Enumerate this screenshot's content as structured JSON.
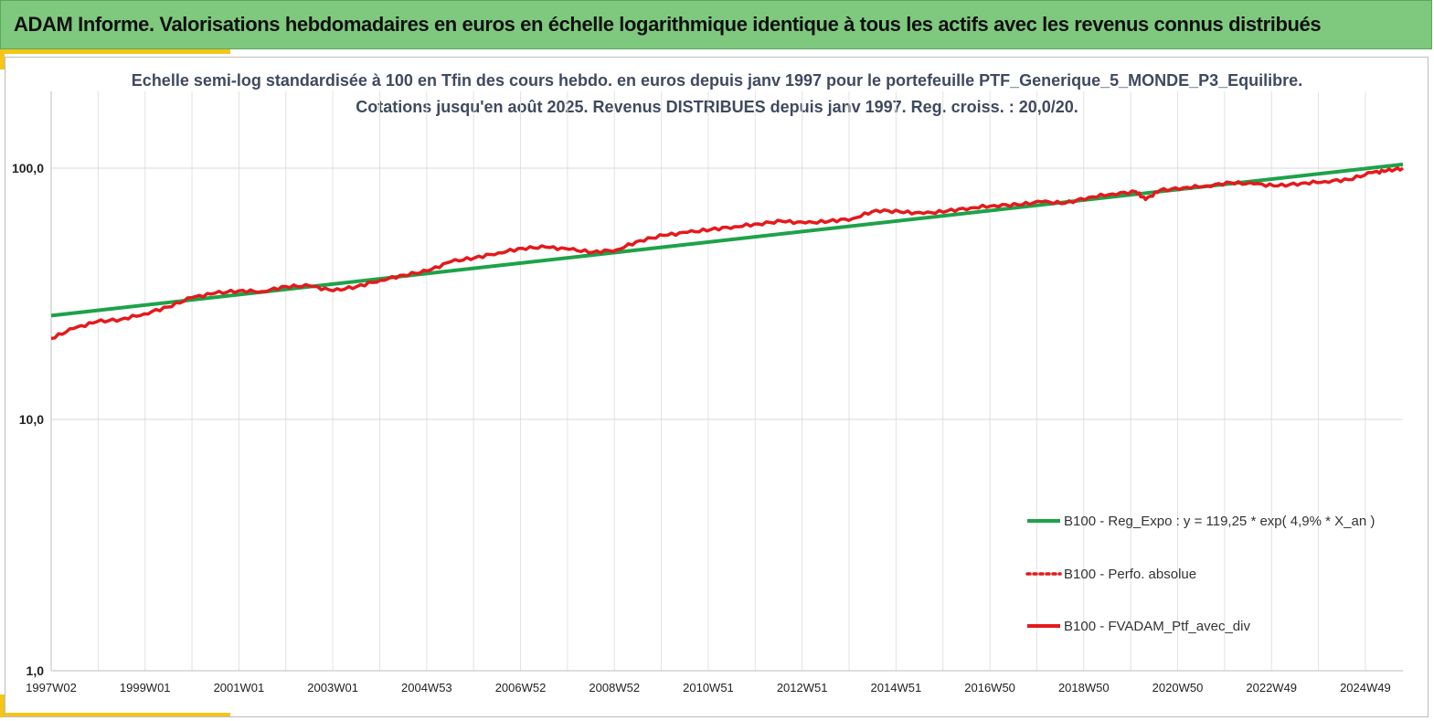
{
  "banner": {
    "title": "ADAM Informe. Valorisations hebdomadaires en euros en échelle logarithmique identique à tous les actifs avec les revenus connus distribués"
  },
  "colors": {
    "banner_bg": "#7fc97f",
    "accent": "#f5c518",
    "regression": "#1ea24a",
    "perf": "#e41a1c"
  },
  "chart_data": {
    "type": "line",
    "title": "Echelle semi-log standardisée à 100 en Tfin des cours hebdo.  en euros depuis janv 1997 pour le portefeuille PTF_Generique_5_MONDE_P3_Equilibre.",
    "subtitle": "Cotations  jusqu'en août 2025. Revenus DISTRIBUES depuis janv 1997. Reg. croiss. : 20,0/20.",
    "y_scale": "log",
    "ylim": [
      1,
      200
    ],
    "y_ticks": [
      "1,0",
      "10,0",
      "100,0"
    ],
    "x_range": [
      1997.03,
      2025.65
    ],
    "x_ticks": [
      "1997W02",
      "1999W01",
      "2001W01",
      "2003W01",
      "2004W53",
      "2006W52",
      "2008W52",
      "2010W51",
      "2012W51",
      "2014W51",
      "2016W50",
      "2018W50",
      "2020W50",
      "2022W49",
      "2024W49"
    ],
    "grid": true,
    "legend_position": "right",
    "series": [
      {
        "name": "B100 - Reg_Expo : y = 119,25 * exp( 4,9% *  X_an )",
        "style": "solid",
        "color": "#1ea24a",
        "x": [
          1997.03,
          2025.65
        ],
        "y": [
          25.9,
          103.5
        ]
      },
      {
        "name": "B100 - Perfo. absolue",
        "style": "dotted",
        "color": "#e41a1c",
        "x": [],
        "y": []
      },
      {
        "name": "B100 - FVADAM_Ptf_avec_div",
        "style": "solid",
        "color": "#e41a1c",
        "x": [
          1997.03,
          1997.5,
          1998.0,
          1998.5,
          1999.0,
          1999.5,
          2000.0,
          2000.5,
          2001.0,
          2001.5,
          2002.0,
          2002.5,
          2003.0,
          2003.5,
          2004.0,
          2004.5,
          2005.0,
          2005.5,
          2006.0,
          2006.5,
          2007.0,
          2007.5,
          2008.0,
          2008.5,
          2009.0,
          2009.5,
          2010.0,
          2010.5,
          2011.0,
          2011.5,
          2012.0,
          2012.5,
          2013.0,
          2013.5,
          2014.0,
          2014.5,
          2015.0,
          2015.5,
          2016.0,
          2016.5,
          2017.0,
          2017.5,
          2018.0,
          2018.5,
          2019.0,
          2019.5,
          2020.0,
          2020.2,
          2020.5,
          2021.0,
          2021.5,
          2022.0,
          2022.5,
          2023.0,
          2023.5,
          2024.0,
          2024.5,
          2025.0,
          2025.3,
          2025.65
        ],
        "y": [
          21.0,
          23.0,
          24.5,
          25.0,
          26.3,
          28.0,
          30.5,
          31.8,
          32.5,
          32.3,
          33.8,
          34.0,
          32.5,
          33.8,
          35.8,
          37.5,
          39.0,
          42.5,
          44.0,
          46.0,
          48.0,
          48.5,
          47.5,
          46.3,
          47.3,
          51.5,
          54.0,
          55.5,
          57.0,
          58.5,
          60.0,
          61.5,
          60.5,
          61.5,
          63.0,
          68.0,
          67.0,
          66.0,
          67.5,
          69.5,
          71.0,
          71.5,
          73.5,
          72.5,
          76.5,
          79.0,
          80.5,
          75.0,
          81.5,
          83.5,
          85.0,
          87.5,
          86.5,
          85.0,
          87.0,
          88.5,
          90.0,
          96.0,
          97.5,
          100.0
        ]
      }
    ]
  }
}
